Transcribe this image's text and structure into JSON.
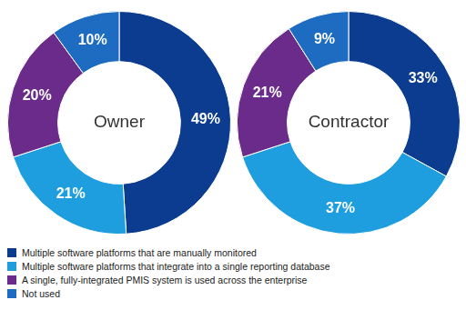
{
  "chart_data": {
    "type": "doughnut",
    "categories": [
      "Multiple software platforms that are manually monitored",
      "Multiple software platforms that integrate into a single reporting database",
      "A single, fully-integrated PMIS system is used across the enterprise",
      "Not used"
    ],
    "colors": [
      "#0c3c8f",
      "#1f9edf",
      "#6a2b8a",
      "#1d6cc2"
    ],
    "series": [
      {
        "name": "Owner",
        "values": [
          49,
          21,
          20,
          10
        ],
        "value_labels": [
          "49%",
          "21%",
          "20%",
          "10%"
        ]
      },
      {
        "name": "Contractor",
        "values": [
          33,
          37,
          21,
          9
        ],
        "value_labels": [
          "33%",
          "37%",
          "21%",
          "9%"
        ]
      }
    ],
    "data_labels": true,
    "legend": "bottom"
  }
}
